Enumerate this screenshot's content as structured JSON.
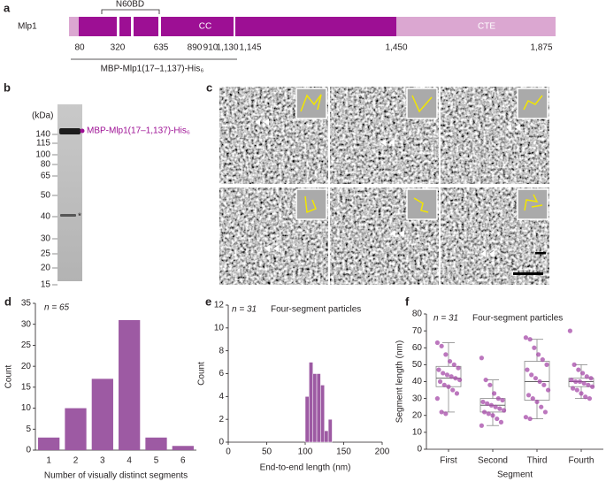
{
  "panel_a": {
    "panel": "a",
    "protein": "Mlp1",
    "region": "N60BD",
    "domain_cc": "CC",
    "domain_cte": "CTE",
    "positions": [
      "80",
      "320",
      "635",
      "890",
      "910",
      "1,130",
      "1,145",
      "1,450",
      "1,875"
    ],
    "construct": "MBP-Mlp1(17–1,137)-His₆"
  },
  "panel_b": {
    "panel": "b",
    "unit": "(kDa)",
    "markers": [
      140,
      115,
      100,
      80,
      65,
      50,
      40,
      30,
      25,
      20,
      15
    ],
    "band_label": "MBP-Mlp1(17–1,137)-His₆",
    "asterisk": "*"
  },
  "panel_c": {
    "panel": "c"
  },
  "chart_data": [
    {
      "type": "bar",
      "panel": "d",
      "annotation": "n = 65",
      "xlabel": "Number of visually distinct segments",
      "ylabel": "Count",
      "categories": [
        "1",
        "2",
        "3",
        "4",
        "5",
        "6"
      ],
      "values": [
        3,
        10,
        17,
        31,
        3,
        1
      ],
      "color": "#9d5aa3",
      "ylim": [
        0,
        35
      ],
      "yticks": [
        0,
        5,
        10,
        15,
        20,
        25,
        30,
        35
      ]
    },
    {
      "type": "histogram",
      "panel": "e",
      "annotation": "n = 31",
      "subtitle": "Four-segment particles",
      "xlabel": "End-to-end length (nm)",
      "ylabel": "Count",
      "bins": [
        100,
        105,
        110,
        115,
        120,
        125,
        130,
        135
      ],
      "values": [
        4,
        7,
        6,
        6,
        5,
        1,
        2
      ],
      "color": "#9d5aa3",
      "xlim": [
        0,
        200
      ],
      "xticks": [
        0,
        50,
        100,
        150,
        200
      ],
      "ylim": [
        0,
        12
      ],
      "yticks": [
        0,
        2,
        4,
        6,
        8,
        10,
        12
      ]
    },
    {
      "type": "box",
      "panel": "f",
      "annotation": "n = 31",
      "subtitle": "Four-segment particles",
      "xlabel": "Segment",
      "ylabel": "Segment length (nm)",
      "color": "#a54aa8",
      "categories": [
        "First",
        "Second",
        "Third",
        "Fourth"
      ],
      "boxes": [
        {
          "min": 22,
          "q1": 37,
          "median": 42,
          "q3": 49,
          "max": 63
        },
        {
          "min": 14,
          "q1": 22,
          "median": 26,
          "q3": 30,
          "max": 41
        },
        {
          "min": 18,
          "q1": 29,
          "median": 40,
          "q3": 52,
          "max": 65
        },
        {
          "min": 30,
          "q1": 37,
          "median": 40,
          "q3": 42,
          "max": 50
        }
      ],
      "points": [
        [
          63,
          61,
          56,
          52,
          50,
          48,
          47,
          45,
          44,
          43,
          42,
          41,
          40,
          38,
          37,
          35,
          33,
          30,
          22,
          21
        ],
        [
          54,
          41,
          38,
          33,
          30,
          29,
          28,
          27,
          26,
          25,
          24,
          23,
          22,
          21,
          20,
          18,
          16,
          14
        ],
        [
          66,
          65,
          60,
          56,
          53,
          50,
          47,
          44,
          42,
          40,
          38,
          35,
          32,
          30,
          28,
          25,
          22,
          19,
          18
        ],
        [
          70,
          50,
          47,
          45,
          43,
          42,
          41,
          40,
          40,
          39,
          38,
          37,
          36,
          35,
          33,
          31,
          30
        ]
      ],
      "ylim": [
        0,
        80
      ],
      "yticks": [
        0,
        10,
        20,
        30,
        40,
        50,
        60,
        70,
        80
      ]
    }
  ]
}
